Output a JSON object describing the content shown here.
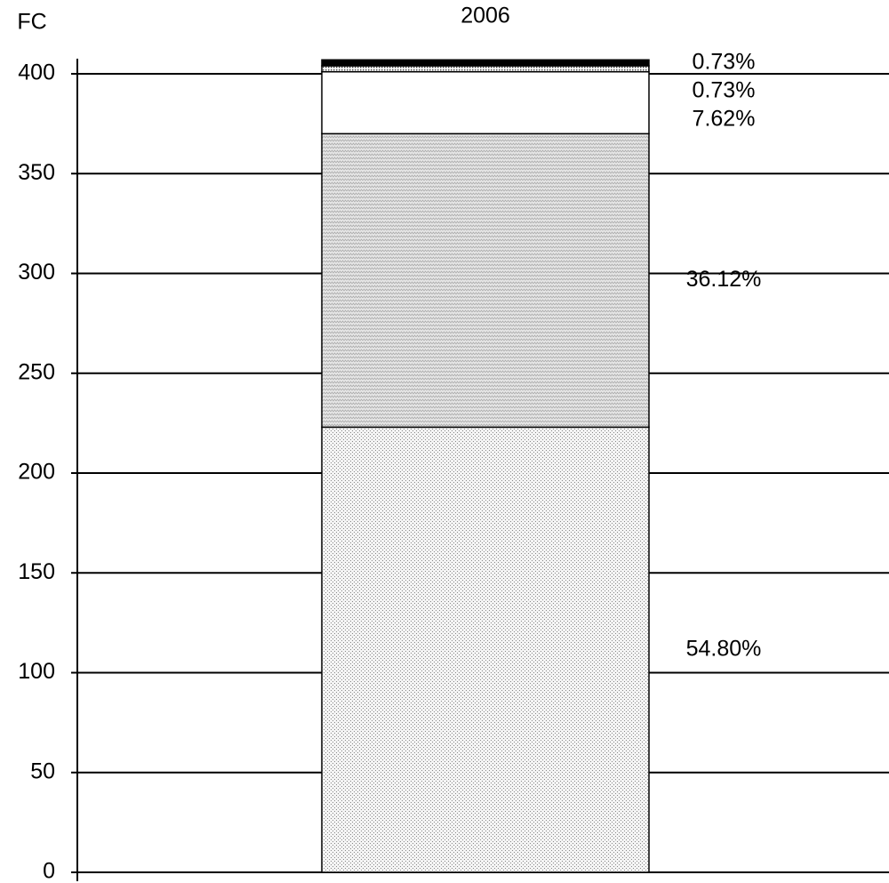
{
  "chart_data": {
    "type": "stacked_bar",
    "y_label": "FC",
    "categories": [
      "2006"
    ],
    "series": [
      {
        "values": [
          223
        ],
        "annotation": "54.80%",
        "pattern": "dots"
      },
      {
        "values": [
          147
        ],
        "annotation": "36.12%",
        "pattern": "waves"
      },
      {
        "values": [
          31
        ],
        "annotation": "7.62%",
        "pattern": "white"
      },
      {
        "values": [
          3
        ],
        "annotation": "0.73%",
        "pattern": "fine"
      },
      {
        "values": [
          3
        ],
        "annotation": "0.73%",
        "pattern": "black"
      }
    ],
    "ylim": [
      0,
      400
    ],
    "yticks": [
      0,
      50,
      100,
      150,
      200,
      250,
      300,
      350,
      400
    ],
    "grid": true
  }
}
